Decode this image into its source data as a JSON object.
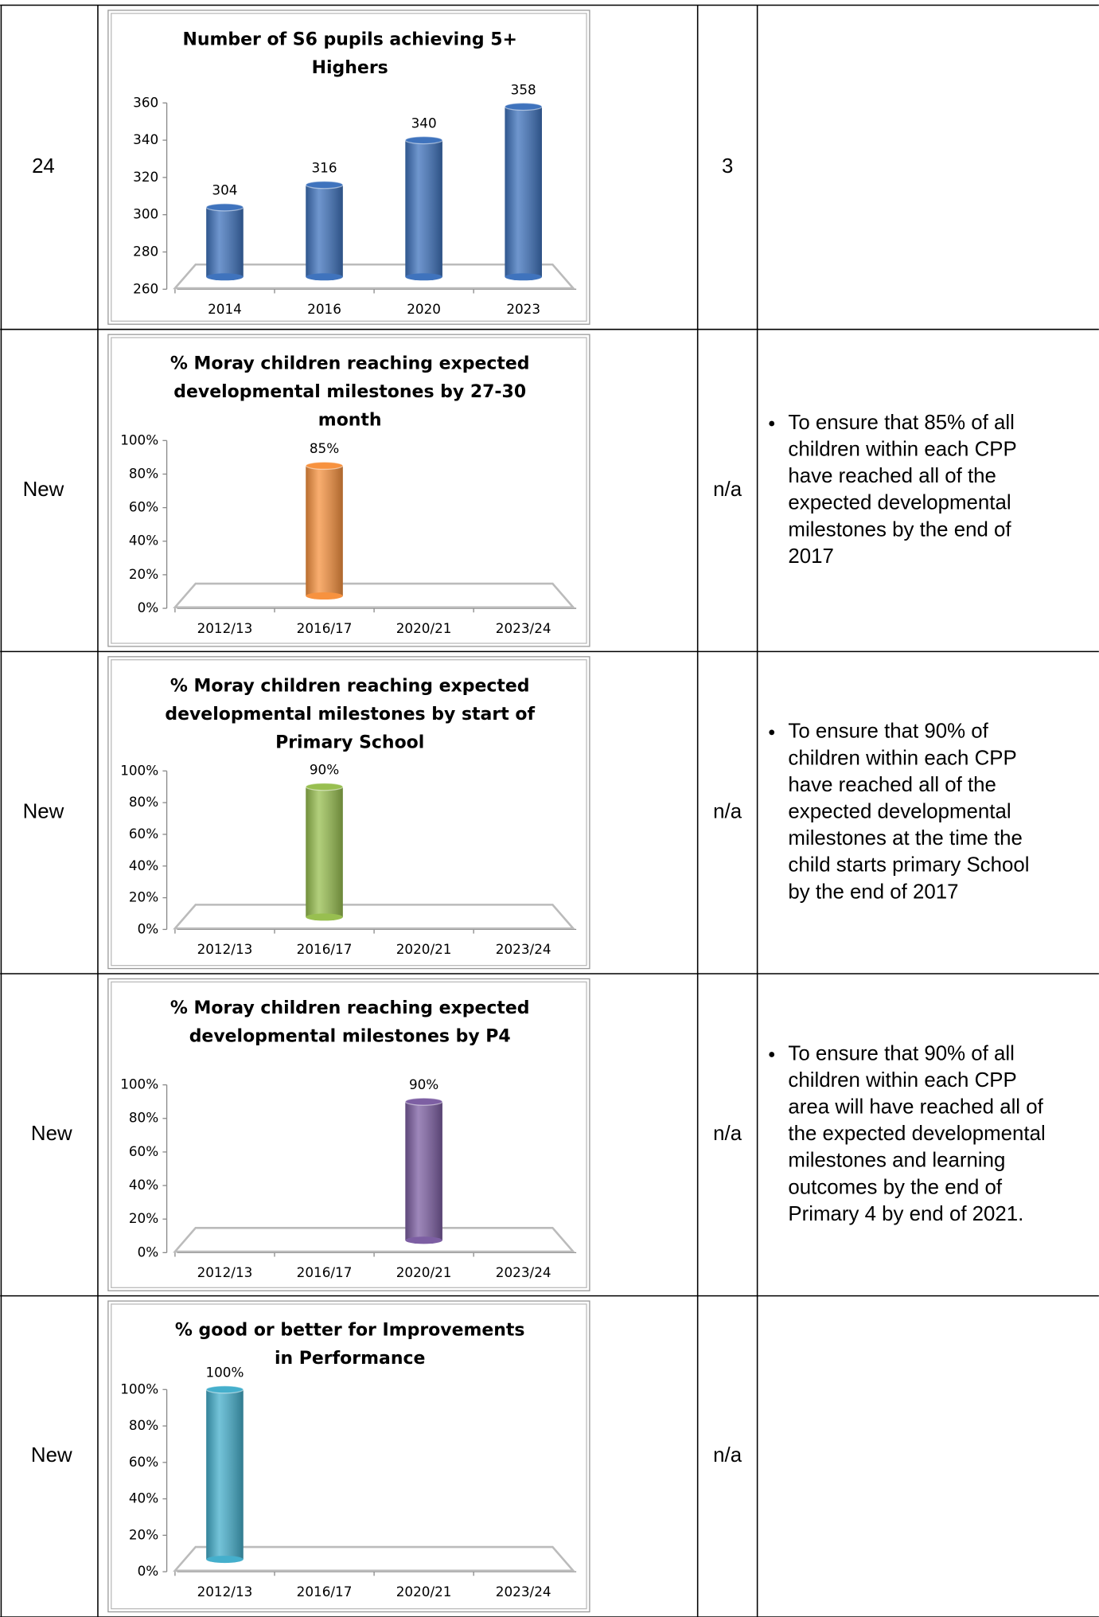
{
  "rows": [
    {
      "ref": "24",
      "score": "3",
      "target": [],
      "chart": {
        "type": "bar",
        "title_lines": [
          "Number of S6 pupils achieving 5+",
          "Highers"
        ],
        "categories": [
          "2014",
          "2016",
          "2020",
          "2023"
        ],
        "values": [
          304,
          316,
          340,
          358
        ],
        "color": "#3f73bd",
        "ylim": [
          260,
          360
        ],
        "yticks": [
          260,
          280,
          300,
          320,
          340,
          360
        ]
      }
    },
    {
      "ref": "New",
      "score": "n/a",
      "target": [
        "To ensure that 85% of all",
        "children within each CPP",
        "have reached all of the",
        "expected developmental",
        "milestones by the end of",
        "2017"
      ],
      "chart": {
        "type": "bar",
        "title_lines": [
          "% Moray children reaching expected",
          "developmental milestones by 27-30",
          "month"
        ],
        "categories": [
          "2012/13",
          "2016/17",
          "2020/21",
          "2023/24"
        ],
        "values": [
          null,
          85,
          null,
          null
        ],
        "value_labels": [
          null,
          "85%",
          null,
          null
        ],
        "color": "#f7923f",
        "ylim": [
          0,
          100
        ],
        "yticks": [
          {
            "value": 0,
            "label": "0%"
          },
          {
            "value": 20,
            "label": "20%"
          },
          {
            "value": 40,
            "label": "40%"
          },
          {
            "value": 60,
            "label": "60%"
          },
          {
            "value": 80,
            "label": "80%"
          },
          {
            "value": 100,
            "label": "100%"
          }
        ]
      }
    },
    {
      "ref": "New",
      "score": "n/a",
      "target": [
        "To ensure that 90% of",
        "children within each CPP",
        "have reached all of the",
        "expected developmental",
        "milestones at the time the",
        "child starts primary School",
        "by the end of 2017"
      ],
      "chart": {
        "type": "bar",
        "title_lines": [
          "% Moray children reaching expected",
          "developmental milestones by start of",
          "Primary School"
        ],
        "categories": [
          "2012/13",
          "2016/17",
          "2020/21",
          "2023/24"
        ],
        "values": [
          null,
          90,
          null,
          null
        ],
        "value_labels": [
          null,
          "90%",
          null,
          null
        ],
        "color": "#98bf50",
        "ylim": [
          0,
          100
        ],
        "yticks": [
          {
            "value": 0,
            "label": "0%"
          },
          {
            "value": 20,
            "label": "20%"
          },
          {
            "value": 40,
            "label": "40%"
          },
          {
            "value": 60,
            "label": "60%"
          },
          {
            "value": 80,
            "label": "80%"
          },
          {
            "value": 100,
            "label": "100%"
          }
        ]
      }
    },
    {
      "ref": "New",
      "score": "n/a",
      "target": [
        "To ensure that 90% of all",
        "children within each CPP",
        "area will have reached all of",
        "the expected developmental",
        "milestones and learning",
        "outcomes by the end of",
        "Primary 4 by end of 2021."
      ],
      "chart": {
        "type": "bar",
        "title_lines": [
          "% Moray children reaching expected",
          "developmental milestones by P4"
        ],
        "categories": [
          "2012/13",
          "2016/17",
          "2020/21",
          "2023/24"
        ],
        "values": [
          null,
          null,
          90,
          null
        ],
        "value_labels": [
          null,
          null,
          "90%",
          null
        ],
        "color": "#7d5fa3",
        "ylim": [
          0,
          100
        ],
        "yticks": [
          {
            "value": 0,
            "label": "0%"
          },
          {
            "value": 20,
            "label": "20%"
          },
          {
            "value": 40,
            "label": "40%"
          },
          {
            "value": 60,
            "label": "60%"
          },
          {
            "value": 80,
            "label": "80%"
          },
          {
            "value": 100,
            "label": "100%"
          }
        ]
      }
    },
    {
      "ref": "New",
      "score": "n/a",
      "target": [],
      "chart": {
        "type": "bar",
        "title_lines": [
          "% good or better for Improvements",
          "in Performance"
        ],
        "categories": [
          "2012/13",
          "2016/17",
          "2020/21",
          "2023/24"
        ],
        "values": [
          100,
          null,
          null,
          null
        ],
        "value_labels": [
          "100%",
          null,
          null,
          null
        ],
        "color": "#45afcc",
        "ylim": [
          0,
          100
        ],
        "yticks": [
          {
            "value": 0,
            "label": "0%"
          },
          {
            "value": 20,
            "label": "20%"
          },
          {
            "value": 40,
            "label": "40%"
          },
          {
            "value": 60,
            "label": "60%"
          },
          {
            "value": 80,
            "label": "80%"
          },
          {
            "value": 100,
            "label": "100%"
          }
        ]
      }
    }
  ]
}
